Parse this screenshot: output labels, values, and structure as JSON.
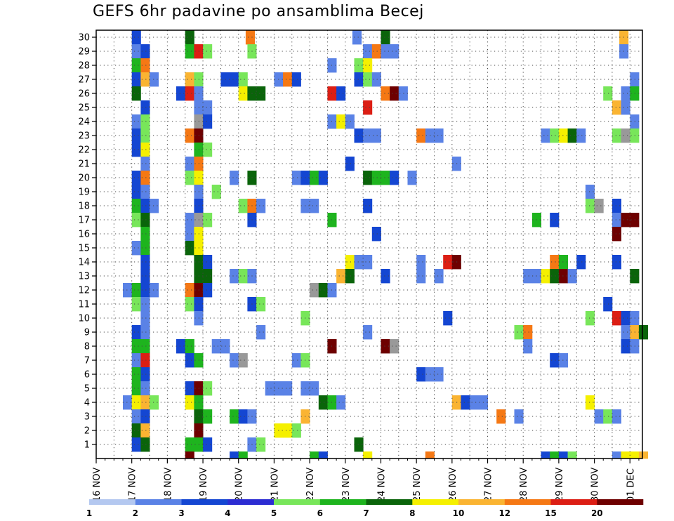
{
  "chart_data": {
    "type": "heatmap",
    "title": "GEFS 6hr padavine po ansamblima Becej",
    "xlabel": "",
    "ylabel": "",
    "x_ticks": [
      "16 NOV",
      "17 NOV",
      "18 NOV",
      "19 NOV",
      "20 NOV",
      "21 NOV",
      "22 NOV",
      "23 NOV",
      "24 NOV",
      "25 NOV",
      "26 NOV",
      "27 NOV",
      "28 NOV",
      "29 NOV",
      "30 NOV",
      "01 DEC"
    ],
    "y_ticks": [
      1,
      2,
      3,
      4,
      5,
      6,
      7,
      8,
      9,
      10,
      11,
      12,
      13,
      14,
      15,
      16,
      17,
      18,
      19,
      20,
      21,
      22,
      23,
      24,
      25,
      26,
      27,
      28,
      29,
      30
    ],
    "grid": true,
    "legend": {
      "position": "bottom",
      "labels": [
        "1",
        "2",
        "3",
        "4",
        "5",
        "6",
        "7",
        "8",
        "10",
        "12",
        "15",
        "20"
      ],
      "colors": [
        "#b4c8f0",
        "#5a82e6",
        "#1446d2",
        "#2c2cd2",
        "#78e65a",
        "#1eb41e",
        "#0a640a",
        "#f5f000",
        "#fab432",
        "#f57814",
        "#dc1e14",
        "#6e0000"
      ]
    },
    "cells": [
      [
        17.0,
        30,
        2
      ],
      [
        18.5,
        30,
        6
      ],
      [
        20.2,
        30,
        9
      ],
      [
        23.2,
        30,
        1
      ],
      [
        24.0,
        30,
        6
      ],
      [
        30.7,
        30,
        8
      ],
      [
        17.0,
        29,
        1
      ],
      [
        17.25,
        29,
        2
      ],
      [
        18.5,
        29,
        5
      ],
      [
        18.75,
        29,
        10
      ],
      [
        19.0,
        29,
        4
      ],
      [
        20.25,
        29,
        4
      ],
      [
        23.5,
        29,
        1
      ],
      [
        23.75,
        29,
        9
      ],
      [
        24.0,
        29,
        1
      ],
      [
        24.25,
        29,
        1
      ],
      [
        30.7,
        29,
        1
      ],
      [
        17.0,
        28,
        5
      ],
      [
        17.25,
        28,
        9
      ],
      [
        22.5,
        28,
        1
      ],
      [
        23.25,
        28,
        4
      ],
      [
        23.5,
        28,
        7
      ],
      [
        17.0,
        27,
        2
      ],
      [
        17.25,
        27,
        8
      ],
      [
        17.5,
        27,
        1
      ],
      [
        18.5,
        27,
        8
      ],
      [
        18.75,
        27,
        4
      ],
      [
        19.5,
        27,
        2
      ],
      [
        19.75,
        27,
        2
      ],
      [
        20.0,
        27,
        4
      ],
      [
        21.0,
        27,
        1
      ],
      [
        21.25,
        27,
        9
      ],
      [
        21.5,
        27,
        2
      ],
      [
        23.25,
        27,
        2
      ],
      [
        23.5,
        27,
        4
      ],
      [
        23.75,
        27,
        1
      ],
      [
        31.0,
        27,
        1
      ],
      [
        17.0,
        26,
        6
      ],
      [
        18.25,
        26,
        2
      ],
      [
        18.5,
        26,
        10
      ],
      [
        18.75,
        26,
        1
      ],
      [
        20.0,
        26,
        7
      ],
      [
        20.25,
        26,
        6
      ],
      [
        20.5,
        26,
        6
      ],
      [
        22.5,
        26,
        10
      ],
      [
        22.75,
        26,
        2
      ],
      [
        24.0,
        26,
        9
      ],
      [
        24.25,
        26,
        11
      ],
      [
        24.5,
        26,
        1
      ],
      [
        30.25,
        26,
        4
      ],
      [
        30.75,
        26,
        1
      ],
      [
        31.0,
        26,
        5
      ],
      [
        17.25,
        25,
        2
      ],
      [
        18.75,
        25,
        1
      ],
      [
        19.0,
        25,
        1
      ],
      [
        23.5,
        25,
        10
      ],
      [
        30.5,
        25,
        8
      ],
      [
        30.75,
        25,
        1
      ],
      [
        17.0,
        24,
        1
      ],
      [
        17.25,
        24,
        4
      ],
      [
        18.75,
        24,
        12
      ],
      [
        19.0,
        24,
        2
      ],
      [
        22.5,
        24,
        1
      ],
      [
        22.75,
        24,
        7
      ],
      [
        23.0,
        24,
        1
      ],
      [
        31.0,
        24,
        1
      ],
      [
        17.0,
        23,
        2
      ],
      [
        17.25,
        23,
        4
      ],
      [
        18.5,
        23,
        9
      ],
      [
        18.75,
        23,
        11
      ],
      [
        23.25,
        23,
        2
      ],
      [
        23.5,
        23,
        1
      ],
      [
        23.75,
        23,
        1
      ],
      [
        25.0,
        23,
        9
      ],
      [
        25.25,
        23,
        1
      ],
      [
        25.5,
        23,
        1
      ],
      [
        28.5,
        23,
        1
      ],
      [
        28.75,
        23,
        4
      ],
      [
        29.0,
        23,
        7
      ],
      [
        29.25,
        23,
        6
      ],
      [
        29.5,
        23,
        1
      ],
      [
        30.5,
        23,
        4
      ],
      [
        30.75,
        23,
        12
      ],
      [
        31.0,
        23,
        4
      ],
      [
        17.0,
        22,
        2
      ],
      [
        17.25,
        22,
        7
      ],
      [
        18.75,
        22,
        5
      ],
      [
        19.0,
        22,
        4
      ],
      [
        17.25,
        21,
        1
      ],
      [
        18.5,
        21,
        1
      ],
      [
        18.75,
        21,
        9
      ],
      [
        23.0,
        21,
        2
      ],
      [
        26.0,
        21,
        1
      ],
      [
        17.0,
        20,
        2
      ],
      [
        17.25,
        20,
        9
      ],
      [
        18.5,
        20,
        4
      ],
      [
        18.75,
        20,
        7
      ],
      [
        19.75,
        20,
        1
      ],
      [
        20.25,
        20,
        6
      ],
      [
        21.5,
        20,
        1
      ],
      [
        21.75,
        20,
        2
      ],
      [
        22.0,
        20,
        5
      ],
      [
        22.25,
        20,
        2
      ],
      [
        23.5,
        20,
        6
      ],
      [
        23.75,
        20,
        5
      ],
      [
        24.0,
        20,
        5
      ],
      [
        24.25,
        20,
        2
      ],
      [
        24.75,
        20,
        1
      ],
      [
        17.0,
        19,
        2
      ],
      [
        17.25,
        19,
        1
      ],
      [
        18.75,
        19,
        1
      ],
      [
        19.25,
        19,
        4
      ],
      [
        29.75,
        19,
        1
      ],
      [
        17.0,
        18,
        5
      ],
      [
        17.25,
        18,
        2
      ],
      [
        17.5,
        18,
        1
      ],
      [
        18.75,
        18,
        2
      ],
      [
        20.0,
        18,
        4
      ],
      [
        20.25,
        18,
        9
      ],
      [
        20.5,
        18,
        1
      ],
      [
        21.75,
        18,
        1
      ],
      [
        22.0,
        18,
        1
      ],
      [
        23.5,
        18,
        2
      ],
      [
        29.75,
        18,
        4
      ],
      [
        30.0,
        18,
        12
      ],
      [
        30.5,
        18,
        2
      ],
      [
        17.0,
        17,
        4
      ],
      [
        17.25,
        17,
        6
      ],
      [
        18.5,
        17,
        1
      ],
      [
        18.75,
        17,
        12
      ],
      [
        19.0,
        17,
        4
      ],
      [
        20.25,
        17,
        2
      ],
      [
        22.5,
        17,
        5
      ],
      [
        28.25,
        17,
        5
      ],
      [
        28.75,
        17,
        2
      ],
      [
        30.5,
        17,
        1
      ],
      [
        30.75,
        17,
        11
      ],
      [
        31.0,
        17,
        11
      ],
      [
        17.25,
        16,
        5
      ],
      [
        18.5,
        16,
        1
      ],
      [
        18.75,
        16,
        7
      ],
      [
        23.75,
        16,
        2
      ],
      [
        30.5,
        16,
        11
      ],
      [
        17.0,
        15,
        1
      ],
      [
        17.25,
        15,
        5
      ],
      [
        18.5,
        15,
        6
      ],
      [
        18.75,
        15,
        7
      ],
      [
        18.75,
        15,
        7
      ],
      [
        17.25,
        14,
        2
      ],
      [
        18.75,
        14,
        6
      ],
      [
        19.0,
        14,
        2
      ],
      [
        23.0,
        14,
        7
      ],
      [
        23.25,
        14,
        1
      ],
      [
        23.5,
        14,
        1
      ],
      [
        25.0,
        14,
        1
      ],
      [
        25.75,
        14,
        10
      ],
      [
        26.0,
        14,
        11
      ],
      [
        28.75,
        14,
        9
      ],
      [
        29.0,
        14,
        5
      ],
      [
        29.5,
        14,
        2
      ],
      [
        30.5,
        14,
        2
      ],
      [
        17.25,
        13,
        2
      ],
      [
        18.75,
        13,
        6
      ],
      [
        19.0,
        13,
        6
      ],
      [
        19.75,
        13,
        1
      ],
      [
        20.0,
        13,
        4
      ],
      [
        20.25,
        13,
        1
      ],
      [
        22.75,
        13,
        8
      ],
      [
        23.0,
        13,
        6
      ],
      [
        24.0,
        13,
        2
      ],
      [
        25.0,
        13,
        1
      ],
      [
        25.5,
        13,
        1
      ],
      [
        28.0,
        13,
        1
      ],
      [
        28.25,
        13,
        1
      ],
      [
        28.5,
        13,
        7
      ],
      [
        28.75,
        13,
        6
      ],
      [
        29.0,
        13,
        11
      ],
      [
        29.25,
        13,
        1
      ],
      [
        31.0,
        13,
        6
      ],
      [
        16.75,
        12,
        1
      ],
      [
        17.0,
        12,
        5
      ],
      [
        17.25,
        12,
        2
      ],
      [
        17.5,
        12,
        1
      ],
      [
        18.5,
        12,
        9
      ],
      [
        18.75,
        12,
        11
      ],
      [
        19.0,
        12,
        2
      ],
      [
        22.0,
        12,
        12
      ],
      [
        22.25,
        12,
        6
      ],
      [
        22.5,
        12,
        1
      ],
      [
        17.0,
        11,
        4
      ],
      [
        17.25,
        11,
        1
      ],
      [
        18.5,
        11,
        4
      ],
      [
        18.75,
        11,
        2
      ],
      [
        20.25,
        11,
        2
      ],
      [
        20.5,
        11,
        4
      ],
      [
        30.25,
        11,
        2
      ],
      [
        17.25,
        10,
        1
      ],
      [
        18.75,
        10,
        1
      ],
      [
        21.75,
        10,
        4
      ],
      [
        25.75,
        10,
        2
      ],
      [
        29.75,
        10,
        4
      ],
      [
        30.5,
        10,
        10
      ],
      [
        30.75,
        10,
        2
      ],
      [
        31.0,
        10,
        1
      ],
      [
        17.0,
        9,
        2
      ],
      [
        17.25,
        9,
        1
      ],
      [
        20.5,
        9,
        1
      ],
      [
        23.5,
        9,
        1
      ],
      [
        27.75,
        9,
        4
      ],
      [
        28.0,
        9,
        9
      ],
      [
        30.75,
        9,
        1
      ],
      [
        31.0,
        9,
        8
      ],
      [
        31.25,
        9,
        6
      ],
      [
        17.0,
        8,
        5
      ],
      [
        17.25,
        8,
        5
      ],
      [
        18.25,
        8,
        2
      ],
      [
        18.5,
        8,
        5
      ],
      [
        19.25,
        8,
        1
      ],
      [
        19.5,
        8,
        1
      ],
      [
        22.5,
        8,
        11
      ],
      [
        24.0,
        8,
        11
      ],
      [
        24.25,
        8,
        12
      ],
      [
        28.0,
        8,
        1
      ],
      [
        30.75,
        8,
        2
      ],
      [
        31.0,
        8,
        1
      ],
      [
        17.0,
        7,
        1
      ],
      [
        17.25,
        7,
        10
      ],
      [
        18.5,
        7,
        2
      ],
      [
        18.75,
        7,
        5
      ],
      [
        19.75,
        7,
        1
      ],
      [
        20.0,
        7,
        12
      ],
      [
        21.5,
        7,
        1
      ],
      [
        21.75,
        7,
        4
      ],
      [
        28.75,
        7,
        2
      ],
      [
        29.0,
        7,
        1
      ],
      [
        17.0,
        6,
        5
      ],
      [
        17.25,
        6,
        2
      ],
      [
        25.0,
        6,
        2
      ],
      [
        25.25,
        6,
        1
      ],
      [
        25.5,
        6,
        1
      ],
      [
        17.0,
        5,
        5
      ],
      [
        17.25,
        5,
        1
      ],
      [
        18.5,
        5,
        2
      ],
      [
        18.75,
        5,
        11
      ],
      [
        19.0,
        5,
        4
      ],
      [
        20.75,
        5,
        1
      ],
      [
        21.0,
        5,
        1
      ],
      [
        21.25,
        5,
        1
      ],
      [
        21.75,
        5,
        1
      ],
      [
        22.0,
        5,
        1
      ],
      [
        16.75,
        4,
        1
      ],
      [
        17.0,
        4,
        7
      ],
      [
        17.25,
        4,
        8
      ],
      [
        17.5,
        4,
        4
      ],
      [
        18.5,
        4,
        7
      ],
      [
        18.75,
        4,
        5
      ],
      [
        22.25,
        4,
        6
      ],
      [
        22.5,
        4,
        5
      ],
      [
        22.75,
        4,
        1
      ],
      [
        26.0,
        4,
        8
      ],
      [
        26.25,
        4,
        2
      ],
      [
        26.5,
        4,
        1
      ],
      [
        26.75,
        4,
        1
      ],
      [
        29.75,
        4,
        7
      ],
      [
        17.0,
        3,
        1
      ],
      [
        17.25,
        3,
        2
      ],
      [
        18.75,
        3,
        6
      ],
      [
        19.0,
        3,
        5
      ],
      [
        19.75,
        3,
        5
      ],
      [
        20.0,
        3,
        2
      ],
      [
        20.25,
        3,
        1
      ],
      [
        21.75,
        3,
        8
      ],
      [
        27.25,
        3,
        9
      ],
      [
        27.75,
        3,
        1
      ],
      [
        30.0,
        3,
        1
      ],
      [
        30.25,
        3,
        4
      ],
      [
        30.5,
        3,
        1
      ],
      [
        17.0,
        2,
        6
      ],
      [
        17.25,
        2,
        8
      ],
      [
        18.75,
        2,
        11
      ],
      [
        21.0,
        2,
        7
      ],
      [
        21.25,
        2,
        7
      ],
      [
        21.5,
        2,
        4
      ],
      [
        17.0,
        1,
        2
      ],
      [
        17.25,
        1,
        6
      ],
      [
        18.5,
        1,
        5
      ],
      [
        18.75,
        1,
        5
      ],
      [
        19.0,
        1,
        2
      ],
      [
        20.25,
        1,
        1
      ],
      [
        20.5,
        1,
        4
      ],
      [
        23.25,
        1,
        6
      ],
      [
        18.5,
        0.5,
        11
      ],
      [
        19.75,
        0.5,
        2
      ],
      [
        20.0,
        0.5,
        5
      ],
      [
        22.0,
        0.5,
        5
      ],
      [
        22.25,
        0.5,
        2
      ],
      [
        23.5,
        0.5,
        7
      ],
      [
        25.25,
        0.5,
        9
      ],
      [
        28.5,
        0.5,
        2
      ],
      [
        28.75,
        0.5,
        5
      ],
      [
        29.0,
        0.5,
        2
      ],
      [
        29.25,
        0.5,
        4
      ],
      [
        30.5,
        0.5,
        1
      ],
      [
        30.75,
        0.5,
        7
      ],
      [
        31.0,
        0.5,
        7
      ],
      [
        31.25,
        0.5,
        8
      ]
    ]
  }
}
